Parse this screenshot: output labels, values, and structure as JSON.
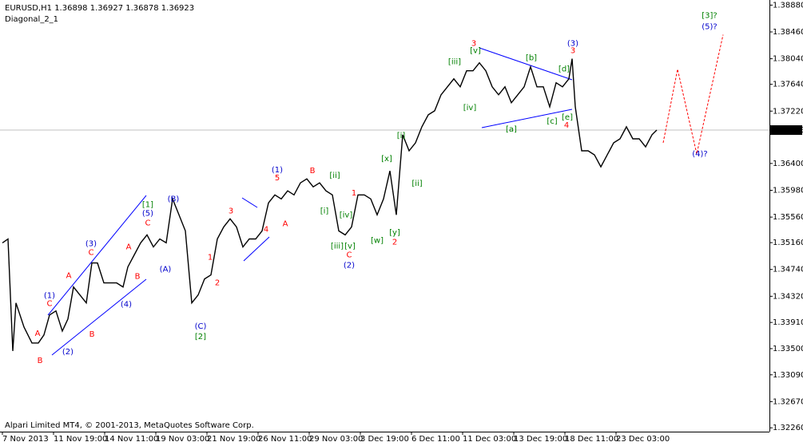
{
  "chart_data": {
    "type": "line",
    "title": "EURUSD,H1  1.36898 1.36927 1.36878 1.36923",
    "subtitle": "Diagonal_2_1",
    "footer": "Alpari Limited MT4, © 2001-2013, MetaQuotes Software Corp.",
    "xlim": [
      0,
      963
    ],
    "ylim": [
      1.322,
      1.3896
    ],
    "xticks": [
      {
        "value": 3,
        "label": "7 Nov 2013"
      },
      {
        "value": 67,
        "label": "11 Nov 19:00"
      },
      {
        "value": 131,
        "label": "14 Nov 11:00"
      },
      {
        "value": 195,
        "label": "19 Nov 03:00"
      },
      {
        "value": 259,
        "label": "21 Nov 19:00"
      },
      {
        "value": 323,
        "label": "26 Nov 11:00"
      },
      {
        "value": 387,
        "label": "29 Nov 03:00"
      },
      {
        "value": 451,
        "label": "3 Dec 19:00"
      },
      {
        "value": 515,
        "label": "6 Dec 11:00"
      },
      {
        "value": 579,
        "label": "11 Dec 03:00"
      },
      {
        "value": 643,
        "label": "13 Dec 19:00"
      },
      {
        "value": 707,
        "label": "18 Dec 11:00"
      },
      {
        "value": 771,
        "label": "23 Dec 03:00"
      }
    ],
    "yticks": [
      {
        "value": 1.3888,
        "label": "1.38880"
      },
      {
        "value": 1.3846,
        "label": "1.38460"
      },
      {
        "value": 1.3804,
        "label": "1.38040"
      },
      {
        "value": 1.3764,
        "label": "1.37640"
      },
      {
        "value": 1.3722,
        "label": "1.37220"
      },
      {
        "value": 1.364,
        "label": "1.36400"
      },
      {
        "value": 1.3598,
        "label": "1.35980"
      },
      {
        "value": 1.3556,
        "label": "1.35560"
      },
      {
        "value": 1.3516,
        "label": "1.35160"
      },
      {
        "value": 1.3474,
        "label": "1.34740"
      },
      {
        "value": 1.3432,
        "label": "1.34320"
      },
      {
        "value": 1.3391,
        "label": "1.33910"
      },
      {
        "value": 1.335,
        "label": "1.33500"
      },
      {
        "value": 1.3309,
        "label": "1.33090"
      },
      {
        "value": 1.3267,
        "label": "1.32670"
      },
      {
        "value": 1.3226,
        "label": "1.32260"
      }
    ],
    "current_price": {
      "value": 1.36923,
      "label": "1.36923"
    },
    "series": [
      {
        "name": "EURUSD",
        "color": "#000000",
        "x": [
          3,
          10,
          16,
          20,
          30,
          40,
          48,
          55,
          62,
          70,
          78,
          85,
          92,
          100,
          108,
          115,
          122,
          130,
          138,
          146,
          154,
          160,
          168,
          176,
          184,
          192,
          200,
          208,
          216,
          224,
          232,
          240,
          248,
          256,
          264,
          272,
          280,
          288,
          296,
          304,
          312,
          320,
          328,
          336,
          344,
          352,
          360,
          368,
          376,
          384,
          392,
          400,
          408,
          416,
          424,
          432,
          440,
          448,
          456,
          464,
          472,
          480,
          488,
          496,
          504,
          512,
          520,
          528,
          536,
          544,
          552,
          560,
          568,
          576,
          584,
          592,
          600,
          608,
          616,
          624,
          632,
          640,
          648,
          656,
          664,
          672,
          680,
          688,
          696,
          704,
          712,
          716,
          720,
          728,
          736,
          744,
          752,
          760,
          768,
          776,
          784,
          792,
          800,
          808,
          816,
          822
        ],
        "values": [
          1.35156,
          1.35218,
          1.33463,
          1.34215,
          1.33839,
          1.33588,
          1.33588,
          1.33714,
          1.34027,
          1.3409,
          1.33776,
          1.33964,
          1.34466,
          1.34341,
          1.34215,
          1.34842,
          1.34842,
          1.34529,
          1.34529,
          1.34529,
          1.34466,
          1.34779,
          1.34968,
          1.35156,
          1.35281,
          1.35093,
          1.35218,
          1.35156,
          1.35845,
          1.35595,
          1.35344,
          1.34215,
          1.34341,
          1.34591,
          1.34654,
          1.35218,
          1.35406,
          1.35532,
          1.35406,
          1.35093,
          1.35218,
          1.35218,
          1.35344,
          1.35783,
          1.35908,
          1.35845,
          1.35971,
          1.35908,
          1.36096,
          1.36159,
          1.36033,
          1.36096,
          1.35971,
          1.35908,
          1.35344,
          1.35281,
          1.35406,
          1.35908,
          1.35908,
          1.35845,
          1.35595,
          1.35845,
          1.36284,
          1.35595,
          1.36849,
          1.36598,
          1.36723,
          1.36974,
          1.37162,
          1.37225,
          1.37476,
          1.37601,
          1.37726,
          1.37601,
          1.37852,
          1.37852,
          1.37977,
          1.37852,
          1.37601,
          1.37476,
          1.37601,
          1.3735,
          1.37476,
          1.37601,
          1.37914,
          1.37601,
          1.37601,
          1.37287,
          1.37664,
          1.37601,
          1.37726,
          1.3804,
          1.37287,
          1.36598,
          1.36598,
          1.36535,
          1.36347,
          1.36535,
          1.36723,
          1.36786,
          1.36974,
          1.36786,
          1.36786,
          1.3666,
          1.36849,
          1.36923
        ]
      },
      {
        "name": "forecast",
        "color": "#ff0000",
        "dashed": true,
        "x": [
          830,
          848,
          872,
          905
        ],
        "values": [
          1.36723,
          1.37877,
          1.36548,
          1.38416
        ]
      }
    ],
    "annotations": [
      {
        "text": "A",
        "x": 47,
        "y": 1.33739,
        "color": "#ff0000"
      },
      {
        "text": "B",
        "x": 50,
        "y": 1.33312,
        "color": "#ff0000"
      },
      {
        "text": "(1)",
        "x": 62,
        "y": 1.34328,
        "color": "#0000cc"
      },
      {
        "text": "C",
        "x": 62,
        "y": 1.34203,
        "color": "#ff0000"
      },
      {
        "text": "(2)",
        "x": 85,
        "y": 1.3345,
        "color": "#0000cc"
      },
      {
        "text": "A",
        "x": 86,
        "y": 1.34641,
        "color": "#ff0000"
      },
      {
        "text": "(3)",
        "x": 114,
        "y": 1.35143,
        "color": "#0000cc"
      },
      {
        "text": "C",
        "x": 114,
        "y": 1.35005,
        "color": "#ff0000"
      },
      {
        "text": "B",
        "x": 115,
        "y": 1.33726,
        "color": "#ff0000"
      },
      {
        "text": "A",
        "x": 161,
        "y": 1.35093,
        "color": "#ff0000"
      },
      {
        "text": "B",
        "x": 172,
        "y": 1.34629,
        "color": "#ff0000"
      },
      {
        "text": "(4)",
        "x": 158,
        "y": 1.3419,
        "color": "#0000cc"
      },
      {
        "text": "[1]",
        "x": 185,
        "y": 1.35758,
        "color": "#008000"
      },
      {
        "text": "(5)",
        "x": 185,
        "y": 1.3562,
        "color": "#0000cc"
      },
      {
        "text": "C",
        "x": 185,
        "y": 1.35469,
        "color": "#ff0000"
      },
      {
        "text": "(B)",
        "x": 217,
        "y": 1.35845,
        "color": "#0000cc"
      },
      {
        "text": "(A)",
        "x": 207,
        "y": 1.34742,
        "color": "#0000cc"
      },
      {
        "text": "(C)",
        "x": 251,
        "y": 1.33851,
        "color": "#0000cc"
      },
      {
        "text": "[2]",
        "x": 251,
        "y": 1.33688,
        "color": "#008000"
      },
      {
        "text": "1",
        "x": 263,
        "y": 1.3493,
        "color": "#ff0000"
      },
      {
        "text": "2",
        "x": 272,
        "y": 1.34529,
        "color": "#ff0000"
      },
      {
        "text": "3",
        "x": 289,
        "y": 1.35657,
        "color": "#ff0000"
      },
      {
        "text": "4",
        "x": 333,
        "y": 1.35369,
        "color": "#ff0000"
      },
      {
        "text": "(1)",
        "x": 347,
        "y": 1.36297,
        "color": "#0000cc"
      },
      {
        "text": "5",
        "x": 347,
        "y": 1.36171,
        "color": "#ff0000"
      },
      {
        "text": "A",
        "x": 357,
        "y": 1.35457,
        "color": "#ff0000"
      },
      {
        "text": "B",
        "x": 391,
        "y": 1.36284,
        "color": "#ff0000"
      },
      {
        "text": "[ii]",
        "x": 419,
        "y": 1.36209,
        "color": "#008000"
      },
      {
        "text": "[i]",
        "x": 406,
        "y": 1.35657,
        "color": "#008000"
      },
      {
        "text": "1",
        "x": 443,
        "y": 1.35933,
        "color": "#ff0000"
      },
      {
        "text": "[iv]",
        "x": 433,
        "y": 1.35595,
        "color": "#008000"
      },
      {
        "text": "[iii]",
        "x": 422,
        "y": 1.35105,
        "color": "#008000"
      },
      {
        "text": "[v]",
        "x": 438,
        "y": 1.35105,
        "color": "#008000"
      },
      {
        "text": "C",
        "x": 437,
        "y": 1.34968,
        "color": "#ff0000"
      },
      {
        "text": "(2)",
        "x": 437,
        "y": 1.34804,
        "color": "#0000cc"
      },
      {
        "text": "[w]",
        "x": 472,
        "y": 1.35193,
        "color": "#008000"
      },
      {
        "text": "[x]",
        "x": 484,
        "y": 1.36472,
        "color": "#008000"
      },
      {
        "text": "[y]",
        "x": 494,
        "y": 1.35319,
        "color": "#008000"
      },
      {
        "text": "2",
        "x": 494,
        "y": 1.35168,
        "color": "#ff0000"
      },
      {
        "text": "[i]",
        "x": 502,
        "y": 1.36836,
        "color": "#008000"
      },
      {
        "text": "[ii]",
        "x": 522,
        "y": 1.36084,
        "color": "#008000"
      },
      {
        "text": "[iii]",
        "x": 569,
        "y": 1.3799,
        "color": "#008000"
      },
      {
        "text": "[iv]",
        "x": 588,
        "y": 1.37275,
        "color": "#008000"
      },
      {
        "text": "[v]",
        "x": 595,
        "y": 1.38165,
        "color": "#008000"
      },
      {
        "text": "3",
        "x": 593,
        "y": 1.38278,
        "color": "#ff0000"
      },
      {
        "text": "[a]",
        "x": 640,
        "y": 1.36936,
        "color": "#008000"
      },
      {
        "text": "[b]",
        "x": 665,
        "y": 1.38052,
        "color": "#008000"
      },
      {
        "text": "[c]",
        "x": 691,
        "y": 1.37062,
        "color": "#008000"
      },
      {
        "text": "[d]",
        "x": 706,
        "y": 1.37877,
        "color": "#008000"
      },
      {
        "text": "[e]",
        "x": 710,
        "y": 1.37124,
        "color": "#008000"
      },
      {
        "text": "4",
        "x": 709,
        "y": 1.36999,
        "color": "#ff0000"
      },
      {
        "text": "(3)",
        "x": 717,
        "y": 1.38278,
        "color": "#0000cc"
      },
      {
        "text": "3",
        "x": 717,
        "y": 1.38165,
        "color": "#ff0000"
      },
      {
        "text": "(4)?",
        "x": 876,
        "y": 1.36548,
        "color": "#0000cc"
      },
      {
        "text": "[3]?",
        "x": 888,
        "y": 1.38717,
        "color": "#008000"
      },
      {
        "text": "(5)?",
        "x": 888,
        "y": 1.38541,
        "color": "#0000cc"
      }
    ]
  }
}
